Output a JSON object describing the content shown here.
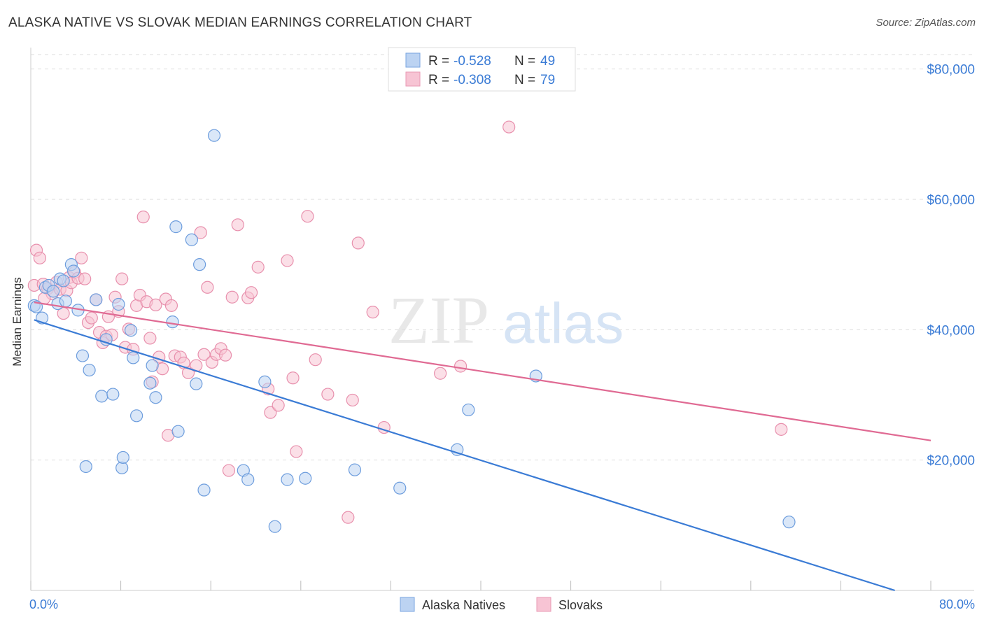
{
  "title": "ALASKA NATIVE VS SLOVAK MEDIAN EARNINGS CORRELATION CHART",
  "source": "Source: ZipAtlas.com",
  "watermark": {
    "zip": "ZIP",
    "atlas": "atlas"
  },
  "colors": {
    "blue": "#3a7bd5",
    "blue_fill": "#bcd3f2",
    "pink": "#e06a93",
    "pink_fill": "#f7c4d4",
    "grid": "#dddddd",
    "axis_text": "#3a7bd5"
  },
  "legend": {
    "rows": [
      {
        "r_label": "R = ",
        "r_value": "-0.528",
        "n_label": "N = ",
        "n_value": "49"
      },
      {
        "r_label": "R = ",
        "r_value": "-0.308",
        "n_label": "N = ",
        "n_value": "79"
      }
    ]
  },
  "bottom_legend": [
    "Alaska Natives",
    "Slovaks"
  ],
  "chart_data": {
    "type": "scatter",
    "title": "ALASKA NATIVE VS SLOVAK MEDIAN EARNINGS CORRELATION CHART",
    "xlabel": "",
    "ylabel": "Median Earnings",
    "xlim": [
      0,
      80
    ],
    "ylim": [
      0,
      82000
    ],
    "x_tick_labels": [
      "0.0%",
      "80.0%"
    ],
    "y_ticks": [
      20000,
      40000,
      60000,
      80000
    ],
    "y_tick_labels": [
      "$20,000",
      "$40,000",
      "$60,000",
      "$80,000"
    ],
    "grid": true,
    "legend_position": "top-center",
    "series": [
      {
        "name": "Alaska Natives",
        "color": "#3a7bd5",
        "trend": {
          "x": [
            0.3,
            76.8
          ],
          "y": [
            41500,
            0
          ]
        },
        "points": [
          [
            0.3,
            43700
          ],
          [
            0.5,
            43500
          ],
          [
            1.0,
            41800
          ],
          [
            1.3,
            46500
          ],
          [
            1.6,
            46800
          ],
          [
            2.0,
            45900
          ],
          [
            2.4,
            44000
          ],
          [
            2.6,
            47800
          ],
          [
            2.9,
            47500
          ],
          [
            3.1,
            44400
          ],
          [
            3.6,
            50000
          ],
          [
            3.8,
            49000
          ],
          [
            4.2,
            43000
          ],
          [
            4.6,
            36000
          ],
          [
            4.9,
            19000
          ],
          [
            5.2,
            33800
          ],
          [
            5.8,
            44600
          ],
          [
            6.3,
            29800
          ],
          [
            6.7,
            38500
          ],
          [
            7.3,
            30100
          ],
          [
            7.8,
            43900
          ],
          [
            8.1,
            18800
          ],
          [
            8.2,
            20400
          ],
          [
            8.9,
            39900
          ],
          [
            9.1,
            35700
          ],
          [
            9.4,
            26800
          ],
          [
            10.6,
            31800
          ],
          [
            10.8,
            34500
          ],
          [
            11.1,
            29600
          ],
          [
            12.6,
            41200
          ],
          [
            12.9,
            55800
          ],
          [
            13.1,
            24400
          ],
          [
            14.3,
            53800
          ],
          [
            14.7,
            31700
          ],
          [
            15.0,
            50000
          ],
          [
            15.4,
            15400
          ],
          [
            16.3,
            69800
          ],
          [
            18.9,
            18400
          ],
          [
            19.3,
            17000
          ],
          [
            20.8,
            32000
          ],
          [
            21.7,
            9800
          ],
          [
            22.8,
            17000
          ],
          [
            24.4,
            17200
          ],
          [
            28.8,
            18500
          ],
          [
            32.8,
            15700
          ],
          [
            37.9,
            21600
          ],
          [
            38.9,
            27700
          ],
          [
            44.9,
            32900
          ],
          [
            67.4,
            10500
          ]
        ]
      },
      {
        "name": "Slovaks",
        "color": "#e06a93",
        "trend": {
          "x": [
            0.3,
            80.0
          ],
          "y": [
            44200,
            23000
          ]
        },
        "points": [
          [
            0.3,
            46800
          ],
          [
            0.5,
            52200
          ],
          [
            0.8,
            51000
          ],
          [
            1.1,
            47000
          ],
          [
            1.5,
            46300
          ],
          [
            1.9,
            45500
          ],
          [
            2.3,
            47300
          ],
          [
            2.6,
            46200
          ],
          [
            2.9,
            42500
          ],
          [
            3.2,
            46000
          ],
          [
            3.4,
            48000
          ],
          [
            3.6,
            47200
          ],
          [
            3.9,
            48800
          ],
          [
            4.2,
            47900
          ],
          [
            4.5,
            51000
          ],
          [
            4.8,
            47800
          ],
          [
            5.1,
            41100
          ],
          [
            5.4,
            41800
          ],
          [
            5.8,
            44600
          ],
          [
            6.1,
            39600
          ],
          [
            6.4,
            38000
          ],
          [
            6.7,
            39000
          ],
          [
            6.9,
            42000
          ],
          [
            7.2,
            39200
          ],
          [
            7.5,
            45000
          ],
          [
            7.8,
            42800
          ],
          [
            8.1,
            47800
          ],
          [
            8.4,
            37300
          ],
          [
            8.7,
            40100
          ],
          [
            9.1,
            37000
          ],
          [
            9.4,
            43700
          ],
          [
            9.7,
            45300
          ],
          [
            10.0,
            57300
          ],
          [
            10.3,
            44300
          ],
          [
            10.6,
            38700
          ],
          [
            10.8,
            32000
          ],
          [
            11.1,
            43800
          ],
          [
            11.4,
            35800
          ],
          [
            11.7,
            34000
          ],
          [
            12.0,
            44700
          ],
          [
            12.2,
            23800
          ],
          [
            12.5,
            43700
          ],
          [
            12.8,
            36000
          ],
          [
            13.3,
            35800
          ],
          [
            13.6,
            34900
          ],
          [
            14.0,
            33400
          ],
          [
            14.7,
            34500
          ],
          [
            15.1,
            54900
          ],
          [
            15.4,
            36200
          ],
          [
            15.7,
            46500
          ],
          [
            16.1,
            35000
          ],
          [
            16.5,
            36200
          ],
          [
            16.9,
            37100
          ],
          [
            17.3,
            36100
          ],
          [
            17.6,
            18400
          ],
          [
            17.9,
            45000
          ],
          [
            18.4,
            56100
          ],
          [
            19.3,
            44900
          ],
          [
            19.6,
            45700
          ],
          [
            20.2,
            49600
          ],
          [
            21.1,
            30900
          ],
          [
            21.3,
            27300
          ],
          [
            22.0,
            28400
          ],
          [
            22.8,
            50600
          ],
          [
            23.3,
            32600
          ],
          [
            23.6,
            21300
          ],
          [
            24.6,
            57400
          ],
          [
            25.3,
            35400
          ],
          [
            26.4,
            30100
          ],
          [
            28.2,
            11200
          ],
          [
            28.6,
            29200
          ],
          [
            29.1,
            53300
          ],
          [
            30.4,
            42700
          ],
          [
            31.4,
            25000
          ],
          [
            36.4,
            33300
          ],
          [
            38.2,
            34400
          ],
          [
            42.5,
            71100
          ],
          [
            66.7,
            24700
          ],
          [
            1.2,
            44800
          ]
        ]
      }
    ]
  }
}
